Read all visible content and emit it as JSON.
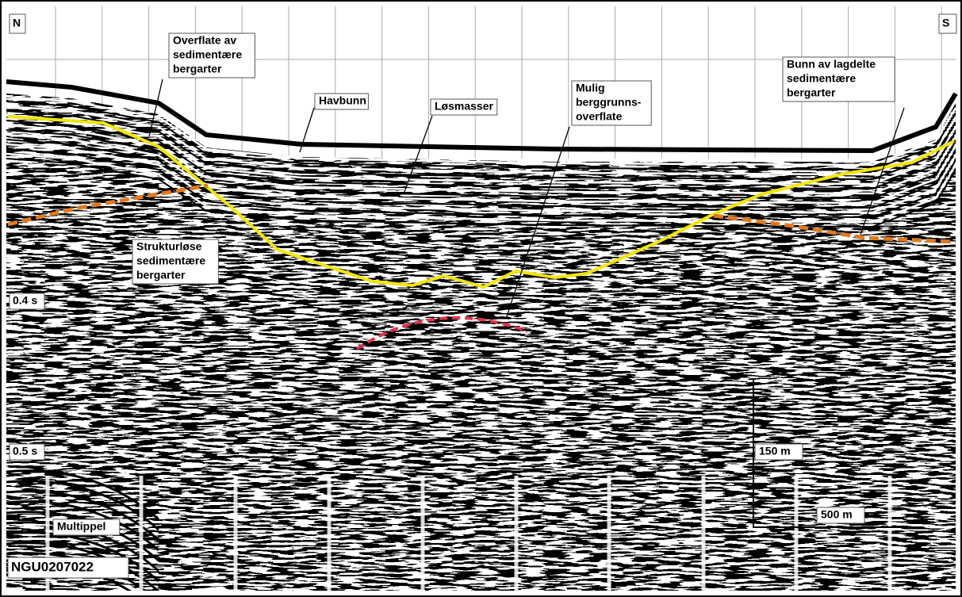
{
  "compass": {
    "north": "N",
    "south": "S"
  },
  "time_marks": [
    "0.4 s",
    "0.5 s"
  ],
  "labels": [
    {
      "lines": [
        "Overflate av",
        "sedimentære",
        "bergarter"
      ]
    },
    {
      "lines": [
        "Havbunn"
      ]
    },
    {
      "lines": [
        "Løsmasser"
      ]
    },
    {
      "lines": [
        "Mulig",
        "berggrunns-",
        "overflate"
      ]
    },
    {
      "lines": [
        "Bunn av lagdelte",
        "sedimentære",
        "bergarter"
      ]
    },
    {
      "lines": [
        "Strukturløse",
        "sedimentære",
        "bergarter"
      ]
    },
    {
      "lines": [
        "Multippel"
      ]
    }
  ],
  "scale": {
    "vertical": "150 m",
    "horizontal": "500 m"
  },
  "profile_id": "NGU0207022"
}
